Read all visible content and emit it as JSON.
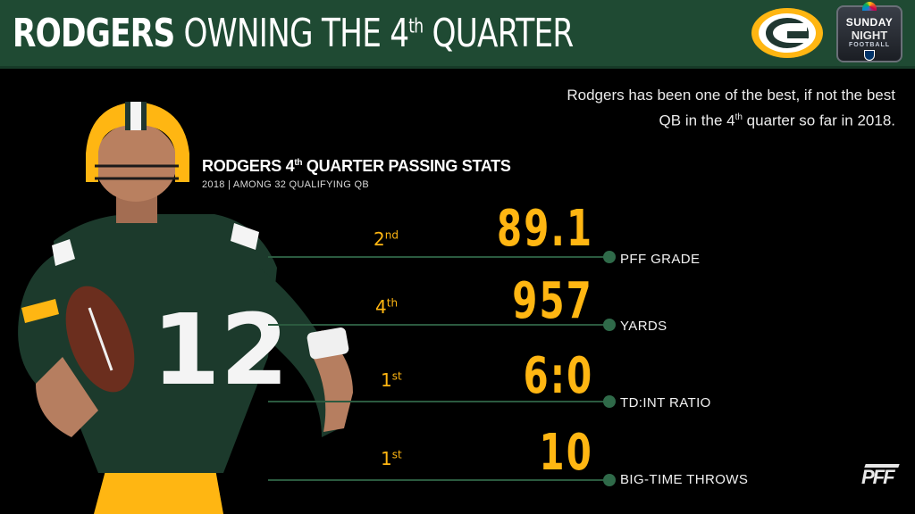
{
  "header": {
    "title_bold": "RODGERS",
    "title_light_pre": " OWNING THE 4",
    "title_sup": "th",
    "title_light_post": " QUARTER",
    "team_logo_icon": "green-bay-packers-g-logo",
    "broadcast_logo_icon": "sunday-night-football-logo",
    "broadcast_line1": "SUNDAY",
    "broadcast_line2": "NIGHT",
    "broadcast_line3": "FOOTBALL"
  },
  "subtitle": {
    "line1": "Rodgers has been one of the best, if not the best",
    "line2_pre": "QB in the 4",
    "line2_sup": "th",
    "line2_post": " quarter so far in 2018."
  },
  "section": {
    "title_pre": "RODGERS 4",
    "title_sup": "th",
    "title_post": " QUARTER PASSING STATS",
    "subtitle": "2018 | AMONG 32 QUALIFYING QB"
  },
  "stats": [
    {
      "rank_num": "2",
      "rank_sup": "nd",
      "value": "89.1",
      "label": "PFF GRADE"
    },
    {
      "rank_num": "4",
      "rank_sup": "th",
      "value": "957",
      "label": "YARDS"
    },
    {
      "rank_num": "1",
      "rank_sup": "st",
      "value": "6:0",
      "label": "TD:INT RATIO"
    },
    {
      "rank_num": "1",
      "rank_sup": "st",
      "value": "10",
      "label": "BIG-TIME THROWS"
    }
  ],
  "player": {
    "jersey_number": "12",
    "icon": "quarterback-photo"
  },
  "footer": {
    "logo_text": "PFF"
  },
  "colors": {
    "header_bg": "#1f4a33",
    "accent_gold": "#ffb612",
    "line_green": "#2b5a3f",
    "background": "#000000"
  }
}
